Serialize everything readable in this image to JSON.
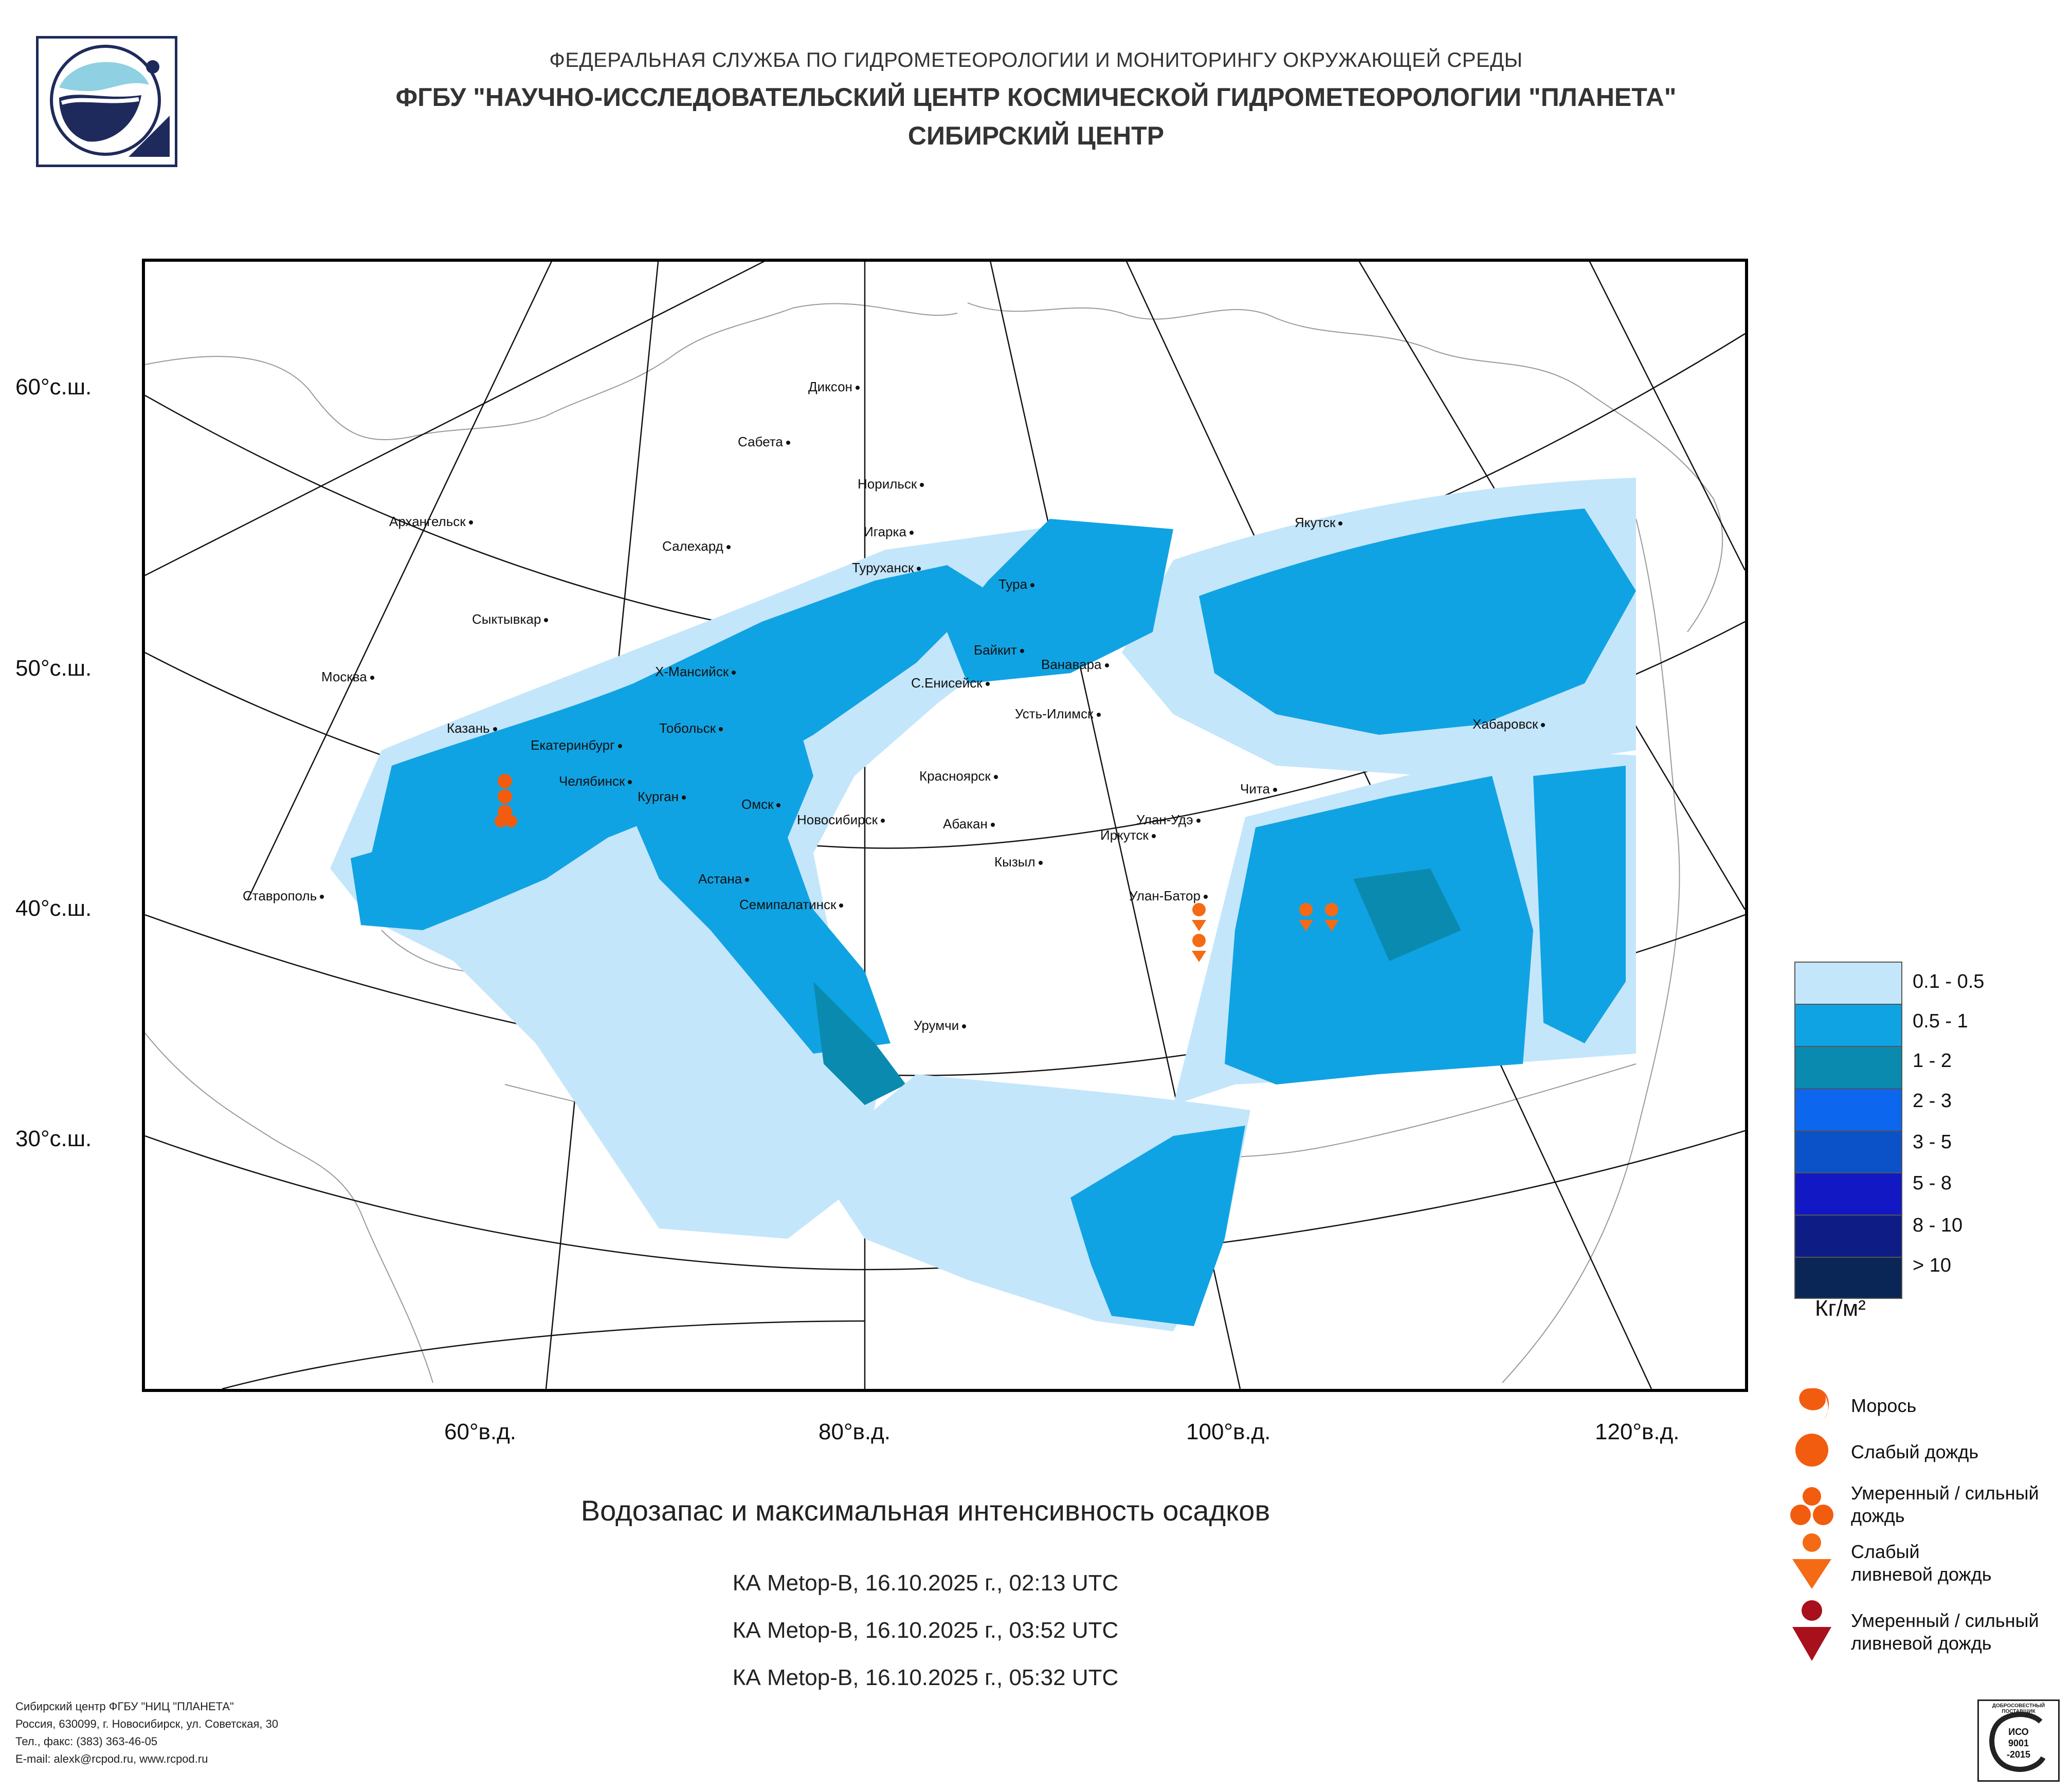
{
  "header": {
    "line1": "ФЕДЕРАЛЬНАЯ СЛУЖБА ПО ГИДРОМЕТЕОРОЛОГИИ И МОНИТОРИНГУ ОКРУЖАЮЩЕЙ СРЕДЫ",
    "line2": "ФГБУ \"НАУЧНО-ИССЛЕДОВАТЕЛЬСКИЙ ЦЕНТР КОСМИЧЕСКОЙ ГИДРОМЕТЕОРОЛОГИИ \"ПЛАНЕТА\"",
    "line3": "СИБИРСКИЙ ЦЕНТР"
  },
  "map": {
    "lat_labels": [
      "60°с.ш.",
      "50°с.ш.",
      "40°с.ш.",
      "30°с.ш."
    ],
    "lon_labels": [
      "60°в.д.",
      "80°в.д.",
      "100°в.д.",
      "120°в.д."
    ],
    "cities": [
      "Диксон",
      "Сабета",
      "Норильск",
      "Архангельск",
      "Игарка",
      "Салехард",
      "Туруханск",
      "Тура",
      "Якутск",
      "Сыктывкар",
      "Байкит",
      "Ванавара",
      "Москва",
      "Х-Мансийск",
      "С.Енисейск",
      "Усть-Илимск",
      "Хабаровск",
      "Казань",
      "Тобольск",
      "Екатеринбург",
      "Красноярск",
      "Чита",
      "Челябинск",
      "Курган",
      "Омск",
      "Новосибирск",
      "Абакан",
      "Улан-Удэ",
      "Иркутск",
      "Кызыл",
      "Астана",
      "Ставрополь",
      "Улан-Батор",
      "Семипалатинск",
      "Урумчи"
    ]
  },
  "legend": {
    "classes": [
      {
        "label": "0.1 - 0.5",
        "color": "#c4e6fb"
      },
      {
        "label": "0.5 - 1",
        "color": "#10a3e3"
      },
      {
        "label": "1 - 2",
        "color": "#0b8ab0"
      },
      {
        "label": "2 - 3",
        "color": "#0d66ee"
      },
      {
        "label": "3 - 5",
        "color": "#0b52c9"
      },
      {
        "label": "5 - 8",
        "color": "#1218c4"
      },
      {
        "label": "8 - 10",
        "color": "#0e1d86"
      },
      {
        "label": "> 10",
        "color": "#0a2656"
      }
    ],
    "unit": "Кг/м²",
    "symbols": [
      {
        "label": "Морось"
      },
      {
        "label": "Слабый дождь"
      },
      {
        "label": "Умеренный / сильный дождь"
      },
      {
        "label": "Слабый ливневой дождь"
      },
      {
        "label": "Умеренный / сильный ливневой дождь"
      }
    ],
    "symbol_colors": {
      "light": "#f25c0f",
      "shower": "#f56a14",
      "heavy_shower": "#a8101c"
    }
  },
  "title": "Водозапас и максимальная интенсивность осадков",
  "passes": [
    "КА Metop-B, 16.10.2025 г., 02:13 UTC",
    "КА Metop-B, 16.10.2025 г., 03:52 UTC",
    "КА Metop-B, 16.10.2025 г., 05:32 UTC"
  ],
  "footer": [
    "Сибирский центр ФГБУ \"НИЦ \"ПЛАНЕТА\"",
    "Россия, 630099, г. Новосибирск, ул. Советская, 30",
    "Тел., факс: (383) 363-46-05",
    "E-mail: alexk@rcpod.ru, www.rcpod.ru"
  ],
  "iso_badge": [
    "ДОБРОСОВЕСТНЫЙ ПОСТАВЩИК",
    "ИСО",
    "9001",
    "-2015"
  ]
}
